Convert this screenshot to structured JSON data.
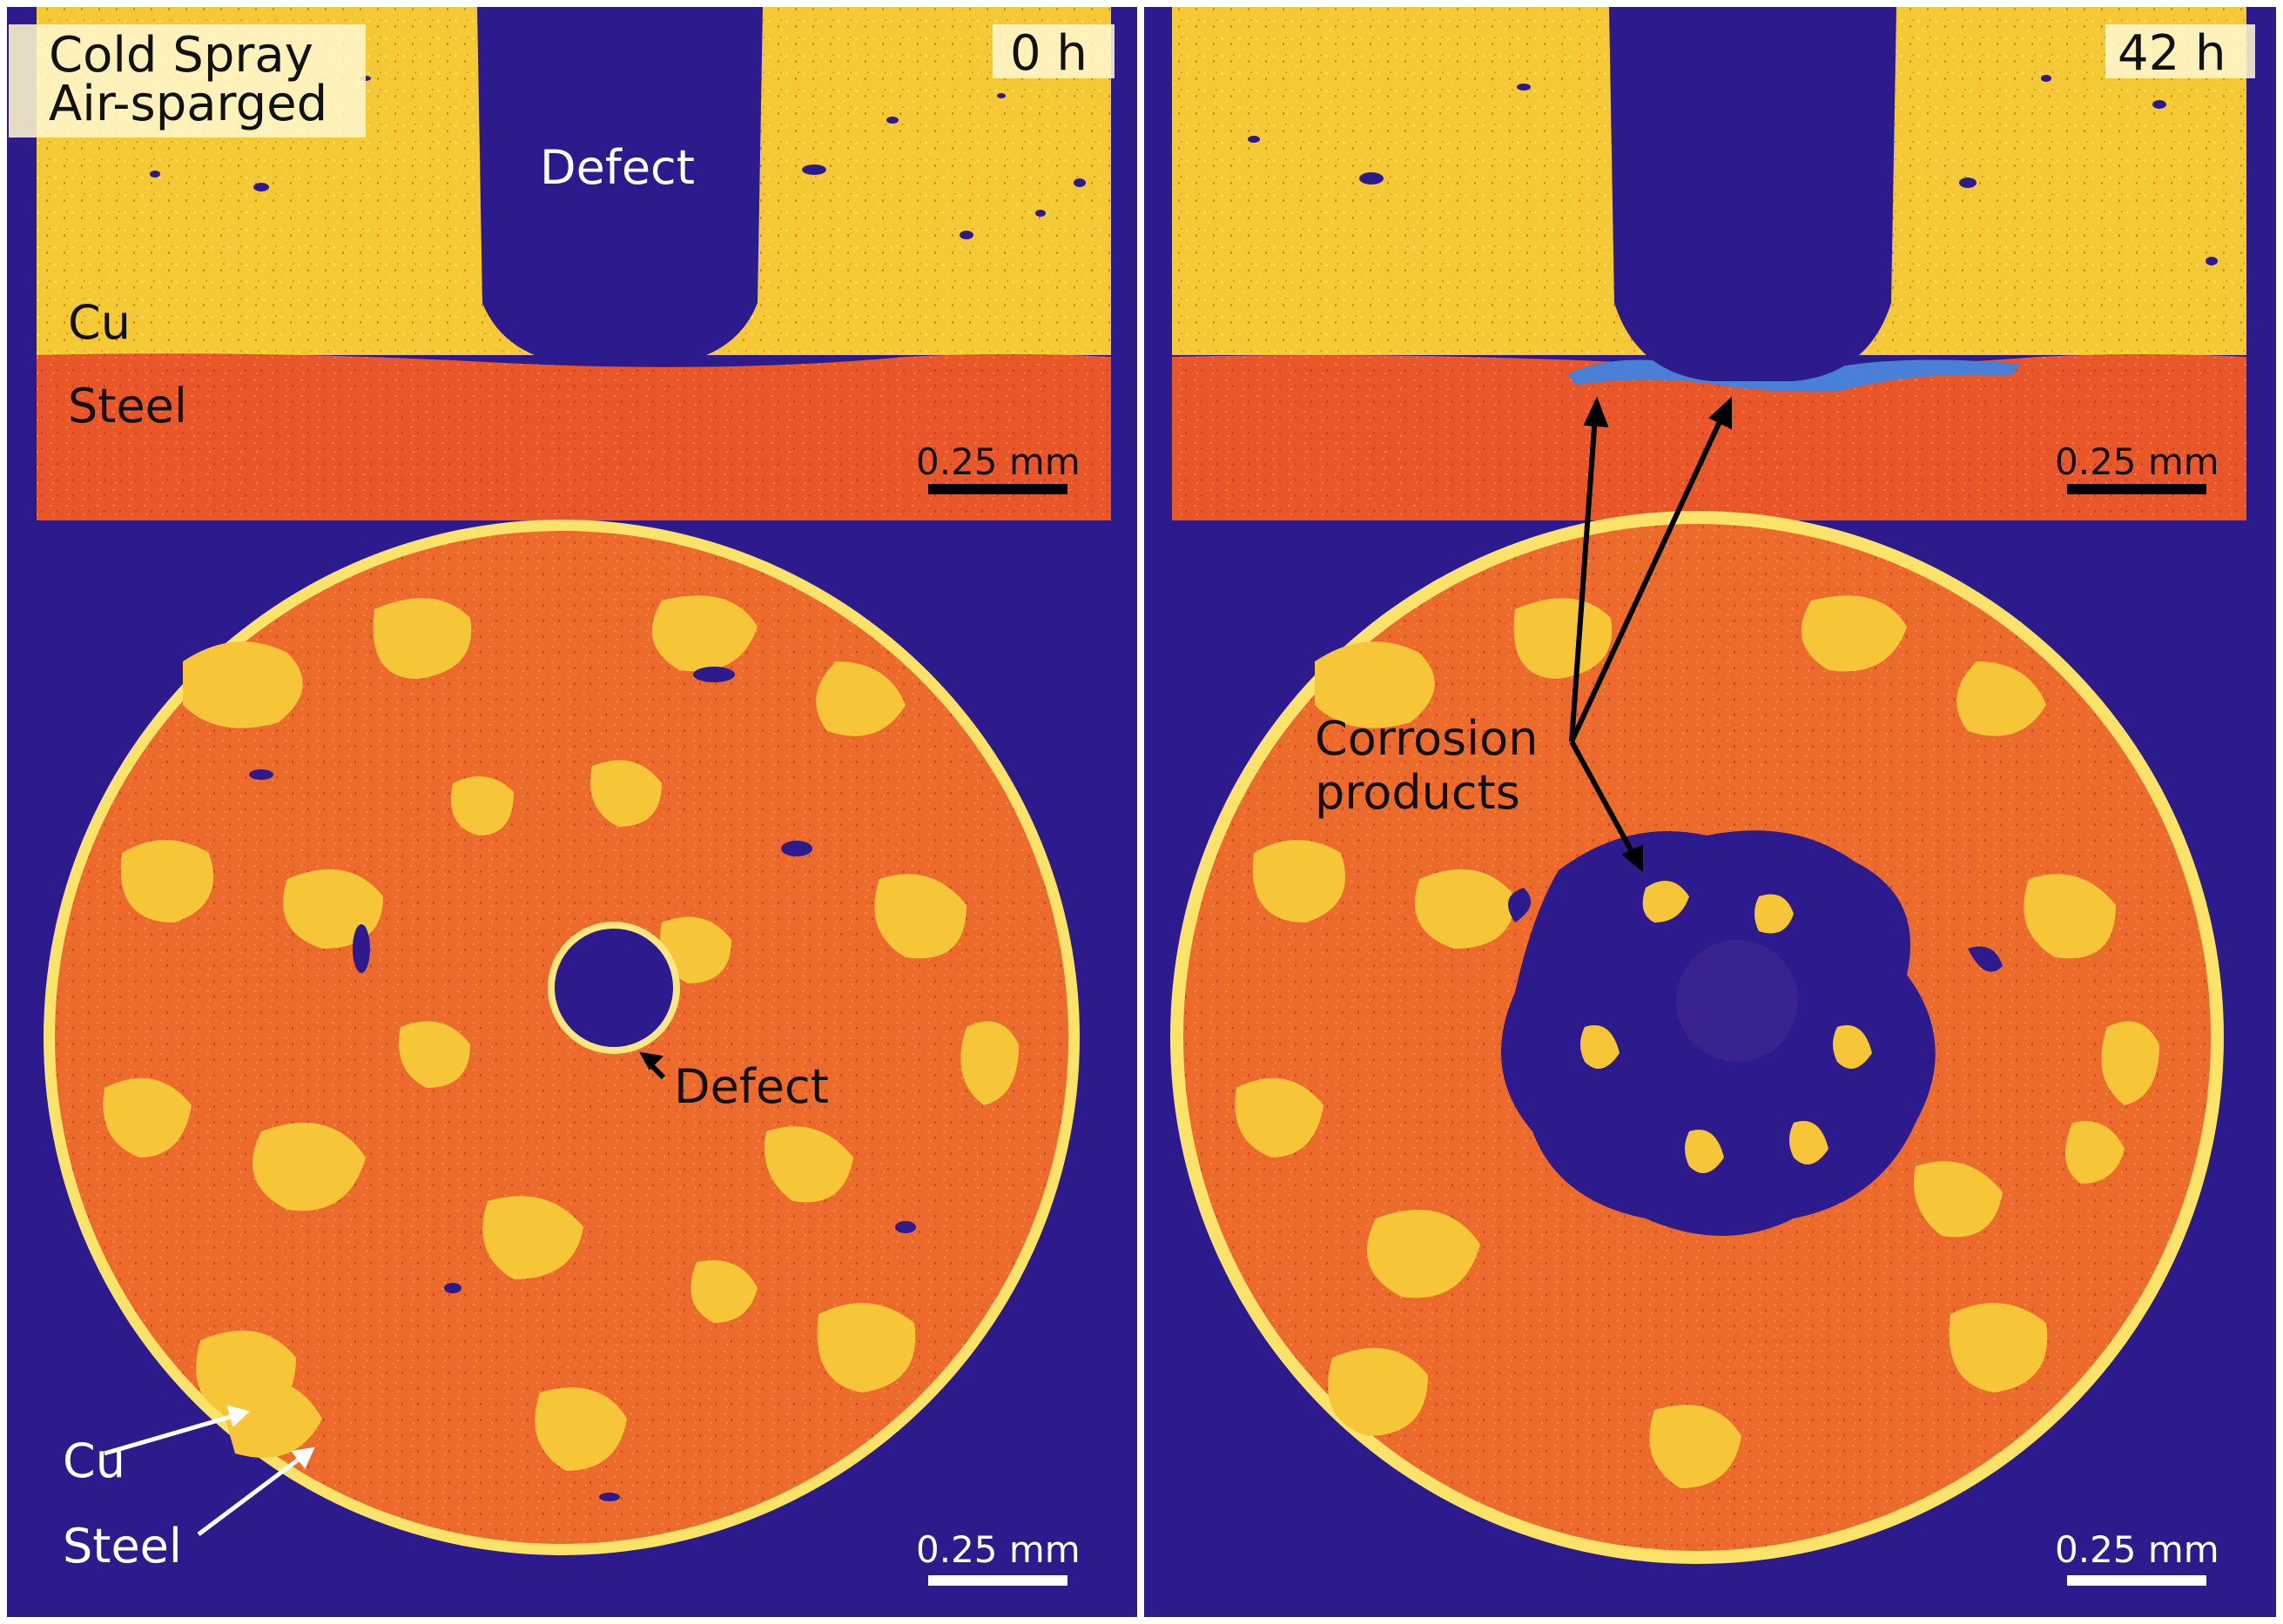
{
  "figure": {
    "condition_line1": "Cold Spray",
    "condition_line2": "Air-sparged",
    "panels": [
      {
        "time": "0 h",
        "layer_labels": [
          "Cu",
          "Steel"
        ],
        "defect_label_cross_section": "Defect",
        "defect_label_top": "Defect",
        "scale_top": "0.25 mm",
        "scale_bottom": "0.25 mm",
        "bottom_labels": [
          "Cu",
          "Steel"
        ]
      },
      {
        "time": "42 h",
        "annotation_line1": "Corrosion",
        "annotation_line2": "products",
        "scale_top": "0.25 mm",
        "scale_bottom": "0.25 mm"
      }
    ]
  },
  "colors": {
    "background": "#2d1a8c",
    "copper": "#f5c935",
    "steel": "#e8562a",
    "corrosion_products": "#4a7fd6",
    "divider": "#ffffff"
  }
}
